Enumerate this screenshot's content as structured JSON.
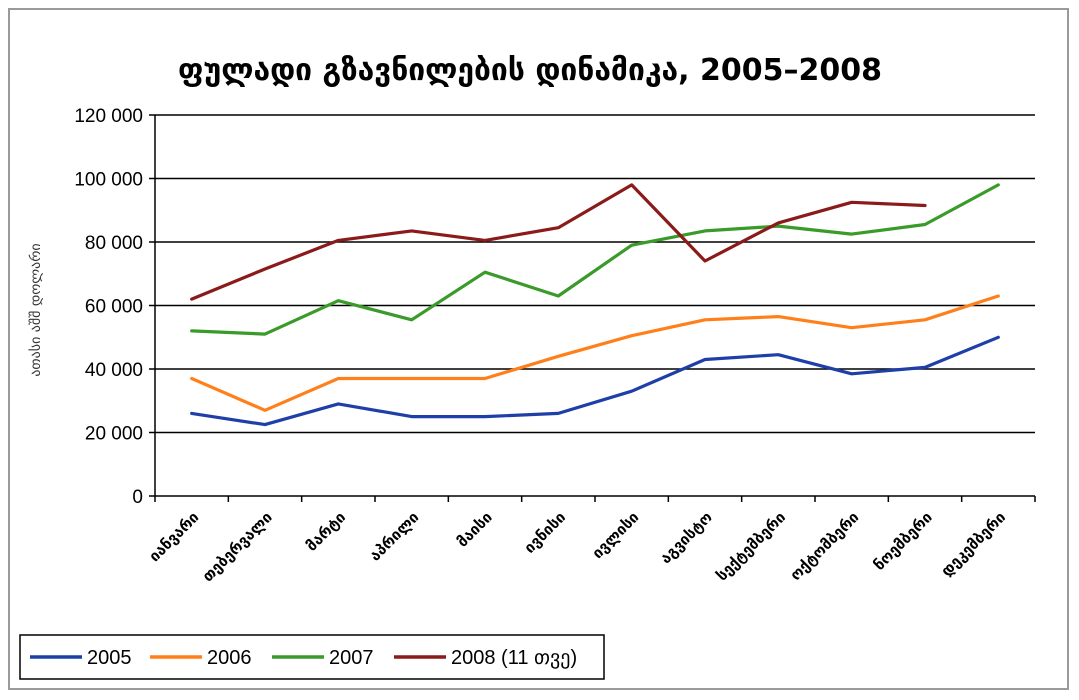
{
  "chart_data": {
    "type": "line",
    "title": "ფულადი გზავნილების დინამიკა, 2005–2008",
    "ylabel": "ათასი აშშ დოლარი",
    "xlabel": "",
    "ylim": [
      0,
      120000
    ],
    "yticks": [
      "0",
      "20 000",
      "40 000",
      "60 000",
      "80 000",
      "100 000",
      "120 000"
    ],
    "ytick_values": [
      0,
      20000,
      40000,
      60000,
      80000,
      100000,
      120000
    ],
    "grid": true,
    "legend_position": "bottom",
    "categories": [
      "იანვარი",
      "თებერვალი",
      "მარტი",
      "აპრილი",
      "მაისი",
      "ივნისი",
      "ივლისი",
      "აგვისტო",
      "სექტემბერი",
      "ოქტომბერი",
      "ნოემბერი",
      "დეკემბერი"
    ],
    "series": [
      {
        "name": "2005",
        "color": "#1f3fa8",
        "values": [
          26000,
          22500,
          29000,
          25000,
          25000,
          26000,
          33000,
          43000,
          44500,
          38500,
          40500,
          50000
        ]
      },
      {
        "name": "2006",
        "color": "#ff7f1a",
        "values": [
          37000,
          27000,
          37000,
          37000,
          37000,
          44000,
          50500,
          55500,
          56500,
          53000,
          55500,
          63000
        ]
      },
      {
        "name": "2007",
        "color": "#3a9a2a",
        "values": [
          52000,
          51000,
          61500,
          55500,
          70500,
          63000,
          79000,
          83500,
          85000,
          82500,
          85500,
          98000
        ]
      },
      {
        "name": "2008 (11 თვე)",
        "color": "#8b1a1a",
        "values": [
          62000,
          71500,
          80500,
          83500,
          80500,
          84500,
          98000,
          74000,
          86000,
          92500,
          91500,
          null
        ]
      }
    ]
  }
}
